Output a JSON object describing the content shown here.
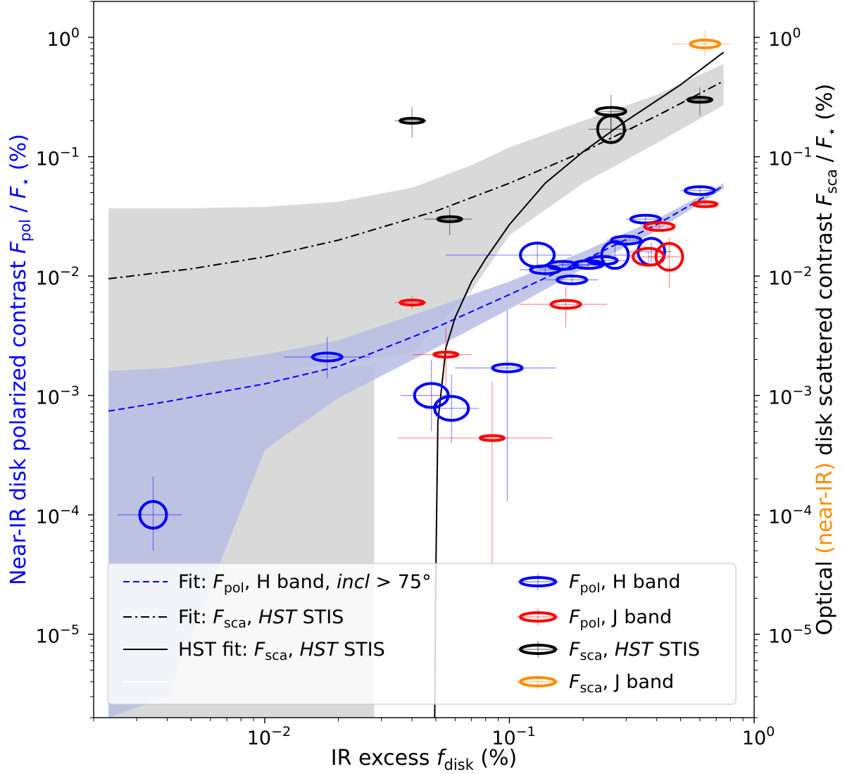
{
  "chart_data": {
    "type": "scatter",
    "xscale": "log",
    "yscale": "log",
    "xlim": [
      0.002,
      1.0
    ],
    "ylim": [
      2e-06,
      2.0
    ],
    "xlabel": {
      "main": "IR excess ",
      "sym": "f",
      "sub": "disk",
      "tail": " (%)"
    },
    "ylabel": {
      "main": "Near-IR disk polarized contrast ",
      "sym": "F",
      "sub": "pol",
      "mid": " / ",
      "sym2": "F",
      "sub2": "⋆",
      "tail": " (%)"
    },
    "y2label": {
      "part1": "Optical ",
      "part2": "(near-IR)",
      "part3": " disk scattered contrast ",
      "sym": "F",
      "sub": "sca",
      "mid": " / ",
      "sym2": "F",
      "sub2": "⋆",
      "tail": " (%)"
    },
    "x_ticks": [
      {
        "value": 0.01,
        "base": "10",
        "exp": "−2"
      },
      {
        "value": 0.1,
        "base": "10",
        "exp": "−1"
      },
      {
        "value": 1.0,
        "base": "10",
        "exp": "0"
      }
    ],
    "y_ticks": [
      {
        "value": 1e-05,
        "base": "10",
        "exp": "−5"
      },
      {
        "value": 0.0001,
        "base": "10",
        "exp": "−4"
      },
      {
        "value": 0.001,
        "base": "10",
        "exp": "−3"
      },
      {
        "value": 0.01,
        "base": "10",
        "exp": "−2"
      },
      {
        "value": 0.1,
        "base": "10",
        "exp": "−1"
      },
      {
        "value": 1.0,
        "base": "10",
        "exp": "0"
      }
    ],
    "colors": {
      "fpol_h": "#0000ff",
      "fpol_j": "#ff0000",
      "fsca_hst": "#000000",
      "fsca_j": "#ff8c00",
      "band_grey": "#d9d9d9",
      "band_blue": "#b9bde3"
    },
    "series": [
      {
        "key": "fpol_h",
        "points": [
          {
            "x": 0.0035,
            "y": 0.0001,
            "xerr": [
              0.0025,
              0.0046
            ],
            "yerr": [
              5e-05,
              0.00021
            ],
            "size": "large"
          },
          {
            "x": 0.018,
            "y": 0.0021,
            "xerr": [
              0.012,
              0.027
            ],
            "yerr": [
              0.0014,
              0.0031
            ],
            "size": "small"
          },
          {
            "x": 0.048,
            "y": 0.001,
            "xerr": [
              0.036,
              0.06
            ],
            "yerr": [
              0.0005,
              0.002
            ],
            "size": "medium"
          },
          {
            "x": 0.058,
            "y": 0.00078,
            "xerr": [
              0.045,
              0.075
            ],
            "yerr": [
              0.0004,
              0.0015
            ],
            "size": "medium"
          },
          {
            "x": 0.098,
            "y": 0.0017,
            "xerr": [
              0.06,
              0.155
            ],
            "yerr": [
              0.00013,
              0.0052
            ],
            "size": "small"
          },
          {
            "x": 0.13,
            "y": 0.015,
            "xerr": [
              0.055,
              0.18
            ],
            "yerr": [
              0.012,
              0.019
            ],
            "size": "medium"
          },
          {
            "x": 0.14,
            "y": 0.0113,
            "xerr": [
              0.11,
              0.18
            ],
            "yerr": [
              0.01,
              0.0127
            ],
            "size": "small"
          },
          {
            "x": 0.165,
            "y": 0.0123,
            "xerr": [
              0.12,
              0.24
            ],
            "yerr": [
              0.011,
              0.0137
            ],
            "size": "small"
          },
          {
            "x": 0.18,
            "y": 0.0093,
            "xerr": [
              0.14,
              0.23
            ],
            "yerr": [
              0.0085,
              0.0102
            ],
            "size": "small"
          },
          {
            "x": 0.21,
            "y": 0.0125,
            "xerr": [
              0.16,
              0.27
            ],
            "yerr": [
              0.0115,
              0.0135
            ],
            "size": "small"
          },
          {
            "x": 0.24,
            "y": 0.0135,
            "xerr": [
              0.2,
              0.3
            ],
            "yerr": [
              0.0125,
              0.0145
            ],
            "size": "small"
          },
          {
            "x": 0.27,
            "y": 0.015,
            "xerr": [
              0.22,
              0.32
            ],
            "yerr": [
              0.0125,
              0.018
            ],
            "size": "large"
          },
          {
            "x": 0.3,
            "y": 0.02,
            "xerr": [
              0.25,
              0.36
            ],
            "yerr": [
              0.018,
              0.022
            ],
            "size": "small"
          },
          {
            "x": 0.36,
            "y": 0.03,
            "xerr": [
              0.3,
              0.44
            ],
            "yerr": [
              0.028,
              0.032
            ],
            "size": "small"
          },
          {
            "x": 0.38,
            "y": 0.016,
            "xerr": [
              0.3,
              0.46
            ],
            "yerr": [
              0.013,
              0.019
            ],
            "size": "large"
          },
          {
            "x": 0.6,
            "y": 0.052,
            "xerr": [
              0.5,
              0.72
            ],
            "yerr": [
              0.049,
              0.055
            ],
            "size": "small"
          }
        ]
      },
      {
        "key": "fpol_j",
        "points": [
          {
            "x": 0.04,
            "y": 0.006,
            "xerr": [
              0.034,
              0.046
            ],
            "yerr": [
              0.0053,
              0.0068
            ],
            "size": "bar"
          },
          {
            "x": 0.055,
            "y": 0.0022,
            "xerr": [
              0.04,
              0.07
            ],
            "yerr": [
              0.0012,
              0.0037
            ],
            "size": "bar"
          },
          {
            "x": 0.085,
            "y": 0.00044,
            "xerr": [
              0.035,
              0.15
            ],
            "yerr": [
              3.5e-05,
              0.0013
            ],
            "size": "bar"
          },
          {
            "x": 0.17,
            "y": 0.0058,
            "xerr": [
              0.11,
              0.25
            ],
            "yerr": [
              0.0037,
              0.0082
            ],
            "size": "small"
          },
          {
            "x": 0.37,
            "y": 0.0145,
            "xerr": [
              0.3,
              0.42
            ],
            "yerr": [
              0.013,
              0.016
            ],
            "size": "medium"
          },
          {
            "x": 0.41,
            "y": 0.026,
            "xerr": [
              0.35,
              0.47
            ],
            "yerr": [
              0.024,
              0.028
            ],
            "size": "small"
          },
          {
            "x": 0.45,
            "y": 0.0145,
            "xerr": [
              0.37,
              0.5
            ],
            "yerr": [
              0.008,
              0.021
            ],
            "size": "large"
          },
          {
            "x": 0.63,
            "y": 0.04,
            "xerr": [
              0.55,
              0.68
            ],
            "yerr": [
              0.037,
              0.043
            ],
            "size": "bar"
          }
        ]
      },
      {
        "key": "fsca_hst",
        "points": [
          {
            "x": 0.04,
            "y": 0.2,
            "xerr": [
              0.034,
              0.046
            ],
            "yerr": [
              0.145,
              0.26
            ],
            "size": "bar"
          },
          {
            "x": 0.057,
            "y": 0.03,
            "xerr": [
              0.045,
              0.07
            ],
            "yerr": [
              0.022,
              0.038
            ],
            "size": "bar"
          },
          {
            "x": 0.26,
            "y": 0.24,
            "xerr": [
              0.22,
              0.3
            ],
            "yerr": [
              0.16,
              0.33
            ],
            "size": "small"
          },
          {
            "x": 0.26,
            "y": 0.17,
            "xerr": [
              0.21,
              0.32
            ],
            "yerr": [
              0.13,
              0.22
            ],
            "size": "large"
          },
          {
            "x": 0.6,
            "y": 0.3,
            "xerr": [
              0.52,
              0.68
            ],
            "yerr": [
              0.22,
              0.38
            ],
            "size": "bar"
          }
        ]
      },
      {
        "key": "fsca_j",
        "points": [
          {
            "x": 0.63,
            "y": 0.88,
            "xerr": [
              0.46,
              0.8
            ],
            "yerr": [
              0.7,
              1.15
            ],
            "size": "small"
          }
        ]
      }
    ],
    "fits": [
      {
        "key": "fit_fpol_h",
        "style": "dashed",
        "color": "#0000ff",
        "x": [
          0.0023,
          0.004,
          0.01,
          0.02,
          0.05,
          0.1,
          0.2,
          0.4,
          0.75
        ],
        "y": [
          0.00074,
          0.00089,
          0.00125,
          0.00175,
          0.0037,
          0.007,
          0.0135,
          0.027,
          0.057
        ]
      },
      {
        "key": "fit_fsca_stis",
        "style": "dashdot",
        "color": "#000000",
        "x": [
          0.0023,
          0.005,
          0.01,
          0.02,
          0.05,
          0.1,
          0.2,
          0.4,
          0.75
        ],
        "y": [
          0.0095,
          0.0115,
          0.0145,
          0.02,
          0.035,
          0.06,
          0.11,
          0.22,
          0.43
        ]
      },
      {
        "key": "fit_hst",
        "style": "solid",
        "color": "#000000",
        "x": [
          0.0495,
          0.05,
          0.051,
          0.055,
          0.06,
          0.07,
          0.08,
          0.1,
          0.14,
          0.2,
          0.3,
          0.5,
          0.75
        ],
        "y": [
          2e-06,
          3e-05,
          0.0006,
          0.0025,
          0.0045,
          0.009,
          0.014,
          0.027,
          0.06,
          0.11,
          0.2,
          0.4,
          0.75
        ]
      }
    ],
    "bands": [
      {
        "key": "band_stis",
        "color": "#d9d9d9",
        "x": [
          0.0023,
          0.005,
          0.01,
          0.02,
          0.04,
          0.07,
          0.1,
          0.2,
          0.4,
          0.75
        ],
        "upper": [
          0.037,
          0.037,
          0.038,
          0.042,
          0.055,
          0.085,
          0.12,
          0.2,
          0.33,
          0.6
        ],
        "lower": [
          0.0016,
          0.0016,
          0.0016,
          0.0018,
          0.0023,
          0.0075,
          0.022,
          0.06,
          0.13,
          0.27
        ]
      },
      {
        "key": "band_stis_lower_left",
        "color": "#d9d9d9",
        "x": [
          0.0023,
          0.003,
          0.004,
          0.01,
          0.02,
          0.028,
          0.028,
          0.0023
        ],
        "y": [
          0.0016,
          0.0016,
          0.0016,
          0.0016,
          0.0017,
          0.0018,
          2e-06,
          2e-06
        ]
      },
      {
        "key": "band_fpol",
        "color": "#b9bde3",
        "x": [
          0.0023,
          0.004,
          0.01,
          0.02,
          0.05,
          0.1,
          0.2,
          0.4,
          0.75
        ],
        "upper": [
          0.0016,
          0.0017,
          0.0022,
          0.0029,
          0.0055,
          0.009,
          0.016,
          0.03,
          0.06
        ],
        "lower": [
          2e-06,
          3e-06,
          0.00035,
          0.00095,
          0.0025,
          0.0053,
          0.0115,
          0.024,
          0.054
        ]
      }
    ]
  },
  "legend": {
    "left": [
      {
        "key": "fit_fpol_h",
        "line": "dashed",
        "color": "#0000ff",
        "pre": "Fit: ",
        "sym": "F",
        "sub": "pol",
        "post": ", H band, ",
        "ital": "incl",
        "tail": " > 75°"
      },
      {
        "key": "fit_fsca_stis",
        "line": "dashdot",
        "color": "#000000",
        "pre": "Fit: ",
        "sym": "F",
        "sub": "sca",
        "post": ", ",
        "ital": "HST",
        "tail": " STIS"
      },
      {
        "key": "fit_hst",
        "line": "solid",
        "color": "#000000",
        "pre": "HST fit: ",
        "sym": "F",
        "sub": "sca",
        "post": ", ",
        "ital": "HST",
        "tail": " STIS"
      },
      {
        "key": "empty",
        "line": "white",
        "color": "#ffffff",
        "pre": "",
        "sym": "",
        "sub": "",
        "post": "",
        "ital": "",
        "tail": ""
      }
    ],
    "right": [
      {
        "key": "fpol_h",
        "color": "#0000ff",
        "sym": "F",
        "sub": "pol",
        "post": ", H band",
        "ital": "",
        "tail": ""
      },
      {
        "key": "fpol_j",
        "color": "#ff0000",
        "sym": "F",
        "sub": "pol",
        "post": ", J band",
        "ital": "",
        "tail": ""
      },
      {
        "key": "fsca_hst",
        "color": "#000000",
        "sym": "F",
        "sub": "sca",
        "post": ", ",
        "ital": "HST",
        "tail": " STIS"
      },
      {
        "key": "fsca_j",
        "color": "#ff8c00",
        "sym": "F",
        "sub": "sca",
        "post": ", J band",
        "ital": "",
        "tail": ""
      }
    ]
  }
}
